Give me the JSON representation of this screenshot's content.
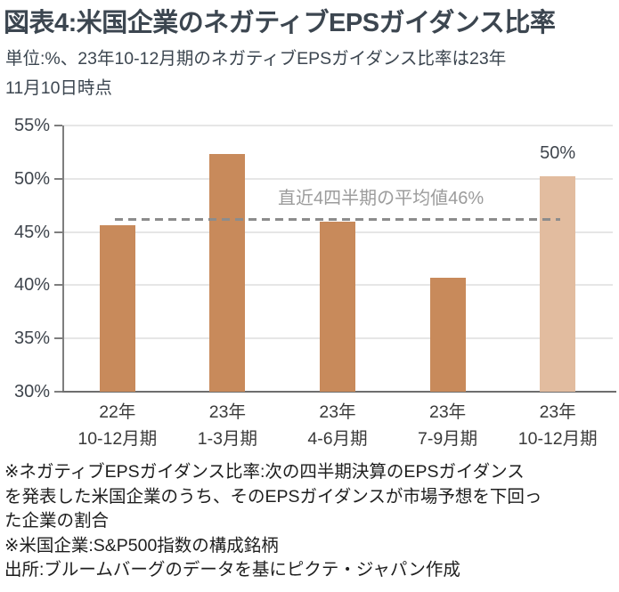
{
  "header": {
    "title": "図表4:米国企業のネガティブEPSガイダンス比率",
    "subtitle_lines": [
      "単位:%、23年10-12月期のネガティブEPSガイダンス比率は23年",
      "11月10日時点"
    ]
  },
  "chart_data": {
    "type": "bar",
    "title": "米国企業のネガティブEPSガイダンス比率",
    "unit": "%",
    "categories": [
      [
        "22年",
        "10-12月期"
      ],
      [
        "23年",
        "1-3月期"
      ],
      [
        "23年",
        "4-6月期"
      ],
      [
        "23年",
        "7-9月期"
      ],
      [
        "23年",
        "10-12月期"
      ]
    ],
    "values": [
      45.6,
      52.3,
      46.0,
      40.7,
      50.2
    ],
    "bar_colors": [
      "#C88A5B",
      "#C88A5B",
      "#C88A5B",
      "#C88A5B",
      "#E2BC9F"
    ],
    "ylim": [
      30,
      55
    ],
    "yticks": [
      30,
      35,
      40,
      45,
      50,
      55
    ],
    "ytick_suffix": "%",
    "grid": "horizontal",
    "legend": "none",
    "average_line": {
      "value": 46.2,
      "label": "直近4四半期の平均値46%",
      "style": "dashed",
      "color": "#8C8C8C"
    },
    "data_labels": [
      {
        "index": 4,
        "text": "50%"
      }
    ]
  },
  "footnotes": {
    "lines": [
      "※ネガティブEPSガイダンス比率:次の四半期決算のEPSガイダンス",
      "を発表した米国企業のうち、そのEPSガイダンスが市場予想を下回っ",
      "た企業の割合",
      "※米国企業:S&P500指数の構成銘柄",
      "出所:ブルームバーグのデータを基にピクテ・ジャパン作成"
    ]
  },
  "colors": {
    "title_text": "#3C4650",
    "body_text": "#1E1E1E",
    "axis_text": "#3F454D",
    "grid": "#E6E6E6",
    "axis_line": "#7E7E7E",
    "dashed_line": "#8C8C8C",
    "annotation_text": "#9C9C9C",
    "bar_main": "#C88A5B",
    "bar_forecast": "#E2BC9F"
  }
}
